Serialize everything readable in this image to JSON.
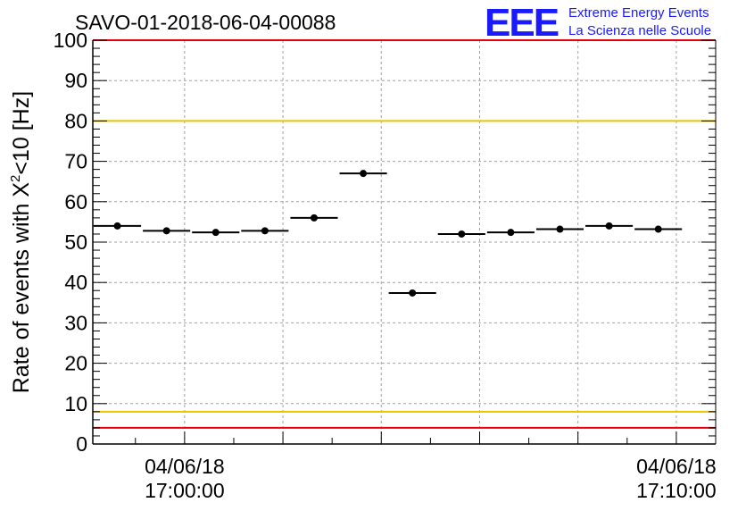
{
  "logo": {
    "mark": "EEE",
    "line1": "Extreme Energy Events",
    "line2": "La Scienza nelle Scuole",
    "color": "#1a1aff"
  },
  "chart_data": {
    "type": "scatter",
    "title": "SAVO-01-2018-06-04-00088",
    "ylabel_main": "Rate of events with X",
    "ylabel_sup": "2",
    "ylabel_tail": "<10 [Hz]",
    "ylim": [
      0,
      100
    ],
    "yticks": [
      0,
      10,
      20,
      30,
      40,
      50,
      60,
      70,
      80,
      90,
      100
    ],
    "xlim": [
      "2018-06-04 16:58:08",
      "2018-06-04 17:10:48"
    ],
    "xtick_labels": [
      {
        "date": "04/06/18",
        "time": "17:00:00",
        "x": "2018-06-04 17:00:00"
      },
      {
        "date": "04/06/18",
        "time": "17:10:00",
        "x": "2018-06-04 17:10:00"
      }
    ],
    "grid": true,
    "bin_width_seconds": 60,
    "points": [
      {
        "x": "2018-06-04 16:58:38",
        "y": 54.0
      },
      {
        "x": "2018-06-04 16:59:38",
        "y": 52.8
      },
      {
        "x": "2018-06-04 17:00:38",
        "y": 52.4
      },
      {
        "x": "2018-06-04 17:01:38",
        "y": 52.8
      },
      {
        "x": "2018-06-04 17:02:38",
        "y": 56.0
      },
      {
        "x": "2018-06-04 17:03:38",
        "y": 67.0
      },
      {
        "x": "2018-06-04 17:04:38",
        "y": 37.4
      },
      {
        "x": "2018-06-04 17:05:38",
        "y": 52.0
      },
      {
        "x": "2018-06-04 17:06:38",
        "y": 52.4
      },
      {
        "x": "2018-06-04 17:07:38",
        "y": 53.2
      },
      {
        "x": "2018-06-04 17:08:38",
        "y": 54.0
      },
      {
        "x": "2018-06-04 17:09:38",
        "y": 53.2
      }
    ],
    "reference_lines": [
      {
        "y": 100,
        "color": "#e8000b"
      },
      {
        "y": 80,
        "color": "#e8c500"
      },
      {
        "y": 8,
        "color": "#e8c500"
      },
      {
        "y": 4,
        "color": "#e8000b"
      }
    ]
  }
}
